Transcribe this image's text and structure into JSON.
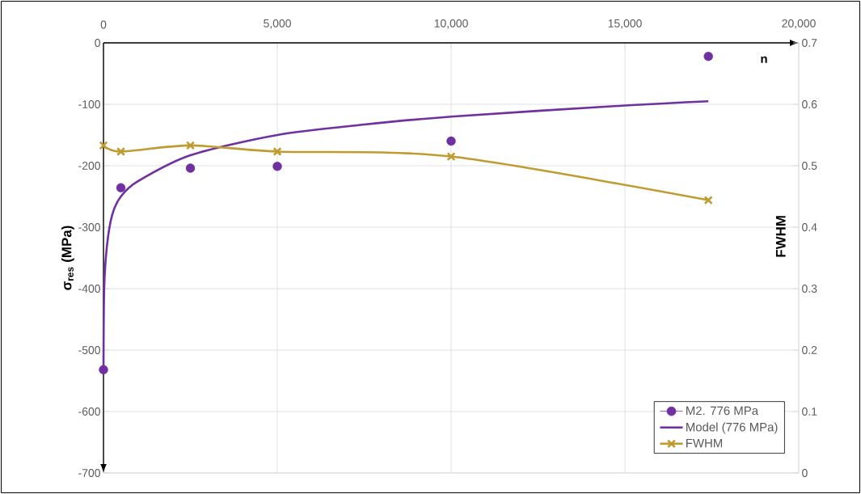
{
  "chart_data": {
    "type": "line",
    "xlabel": "n",
    "ylabel": "σ$_{res}$ (MPa)",
    "y2label": "FWHM",
    "xlim": [
      0,
      20000
    ],
    "xticks": [
      0,
      {
        "value": 5000,
        "label": "5,000"
      },
      {
        "value": 10000,
        "label": "10,000"
      },
      {
        "value": 15000,
        "label": "15,000"
      },
      {
        "value": 20000,
        "label": "20,000"
      }
    ],
    "ylim": [
      -700,
      0
    ],
    "yticks": [
      -700,
      -600,
      -500,
      -400,
      -300,
      -200,
      -100,
      0
    ],
    "y2lim": [
      0,
      0.7
    ],
    "y2ticks": [
      0,
      0.1,
      0.2,
      0.3,
      0.4,
      0.5,
      0.6,
      0.7
    ],
    "grid": true,
    "legend": "bottom right",
    "series": [
      {
        "name": "M2. 776 MPa",
        "type": "scatter",
        "marker": "circle",
        "color": "#7030a0",
        "x": [
          0,
          500,
          2500,
          5000,
          10000,
          17400
        ],
        "values": [
          -532,
          -236,
          -204,
          -201,
          -160,
          -22
        ]
      },
      {
        "name": "Model (776 MPa)",
        "marker": "none",
        "color": "#7030a0",
        "x": [
          0,
          20,
          100,
          250,
          500,
          1000,
          2500,
          5000,
          7500,
          10000,
          15000,
          17400
        ],
        "values": [
          -530,
          -400,
          -330,
          -280,
          -250,
          -225,
          -183,
          -150,
          -133,
          -120,
          -102,
          -95
        ]
      },
      {
        "name": "FWHM",
        "marker": "cross",
        "color": "#bf9b30",
        "axis": "y2",
        "x": [
          0,
          500,
          2500,
          5000,
          10000,
          17400
        ],
        "values": [
          0.533,
          0.523,
          0.533,
          0.523,
          0.515,
          0.444
        ]
      }
    ]
  }
}
